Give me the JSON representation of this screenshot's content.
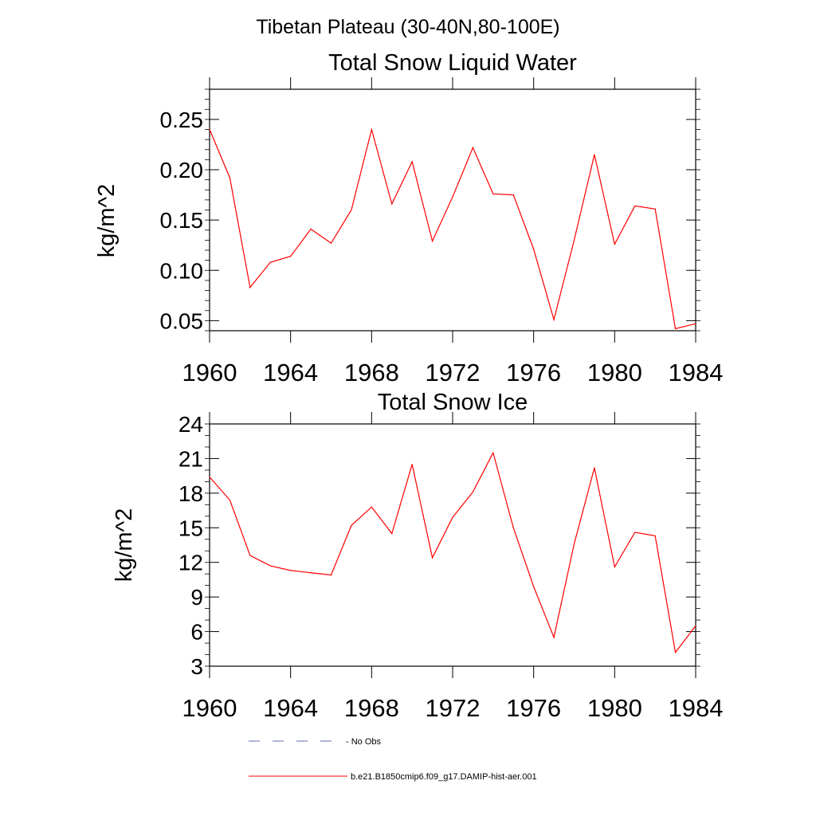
{
  "figure": {
    "main_title": "Tibetan Plateau (30-40N,80-100E)"
  },
  "chart_data": [
    {
      "type": "line",
      "title": "Total Snow Liquid Water",
      "xlabel": "",
      "ylabel": "kg/m^2",
      "xlim": [
        1960,
        1984
      ],
      "ylim": [
        0.04,
        0.28
      ],
      "x_ticks": [
        "1960",
        "1964",
        "1968",
        "1972",
        "1976",
        "1980",
        "1984"
      ],
      "y_ticks": [
        "0.05",
        "0.10",
        "0.15",
        "0.20",
        "0.25"
      ],
      "grid": false,
      "x": [
        1960,
        1961,
        1962,
        1963,
        1964,
        1965,
        1966,
        1967,
        1968,
        1969,
        1970,
        1971,
        1972,
        1973,
        1974,
        1975,
        1976,
        1977,
        1978,
        1979,
        1980,
        1981,
        1982,
        1983,
        1984
      ],
      "series": [
        {
          "name": "b.e21.B1850cmip6.f09_g17.DAMIP-hist-aer.001",
          "color": "#ff0000",
          "values": [
            0.24,
            0.192,
            0.083,
            0.108,
            0.114,
            0.141,
            0.127,
            0.16,
            0.24,
            0.166,
            0.208,
            0.129,
            0.173,
            0.222,
            0.176,
            0.175,
            0.121,
            0.051,
            0.13,
            0.215,
            0.126,
            0.164,
            0.161,
            0.042,
            0.047
          ]
        }
      ]
    },
    {
      "type": "line",
      "title": "Total Snow Ice",
      "xlabel": "",
      "ylabel": "kg/m^2",
      "xlim": [
        1960,
        1984
      ],
      "ylim": [
        3,
        24
      ],
      "x_ticks": [
        "1960",
        "1964",
        "1968",
        "1972",
        "1976",
        "1980",
        "1984"
      ],
      "y_ticks": [
        "3",
        "6",
        "9",
        "12",
        "15",
        "18",
        "21",
        "24"
      ],
      "grid": false,
      "x": [
        1960,
        1961,
        1962,
        1963,
        1964,
        1965,
        1966,
        1967,
        1968,
        1969,
        1970,
        1971,
        1972,
        1973,
        1974,
        1975,
        1976,
        1977,
        1978,
        1979,
        1980,
        1981,
        1982,
        1983,
        1984
      ],
      "series": [
        {
          "name": "b.e21.B1850cmip6.f09_g17.DAMIP-hist-aer.001",
          "color": "#ff0000",
          "values": [
            19.4,
            17.4,
            12.6,
            11.7,
            11.3,
            11.1,
            10.9,
            15.2,
            16.8,
            14.5,
            20.5,
            12.4,
            15.9,
            18.1,
            21.5,
            15.0,
            9.9,
            5.5,
            13.6,
            20.2,
            11.6,
            14.6,
            14.3,
            4.2,
            6.5
          ]
        }
      ]
    }
  ],
  "legend": {
    "position": "bottom",
    "items": [
      {
        "label": "No Obs",
        "style": "dashed",
        "color": "#5a6cad"
      },
      {
        "label": "b.e21.B1850cmip6.f09_g17.DAMIP-hist-aer.001",
        "style": "solid",
        "color": "#ff0000"
      }
    ]
  }
}
